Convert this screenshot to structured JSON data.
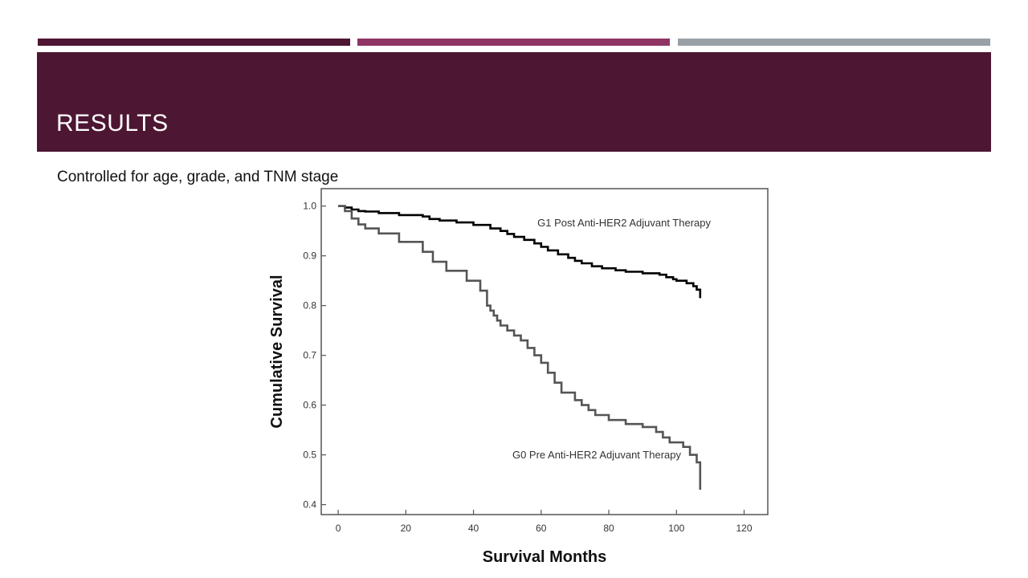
{
  "theme": {
    "stripe_colors": [
      "#4d1632",
      "#8f3564",
      "#9aa1a6"
    ],
    "band_color": "#4d1632"
  },
  "slide": {
    "title": "RESULTS",
    "subtitle": "Controlled for age, grade, and TNM stage"
  },
  "chart_data": {
    "type": "line",
    "title": "",
    "xlabel": "Survival Months",
    "ylabel": "Cumulative Survival",
    "xlim": [
      -5,
      127
    ],
    "ylim": [
      0.38,
      1.035
    ],
    "xticks": [
      0,
      20,
      40,
      60,
      80,
      100,
      120
    ],
    "yticks": [
      0.4,
      0.5,
      0.6,
      0.7,
      0.8,
      0.9,
      1.0
    ],
    "yticklabels": [
      "0.4",
      "0.5",
      "0.6",
      "0.7",
      "0.8",
      "0.9",
      "1.0"
    ],
    "grid": false,
    "step": true,
    "series": [
      {
        "name": "G1 Post Anti-HER2 Adjuvant Therapy",
        "color": "#000000",
        "x": [
          0,
          2,
          4,
          6,
          8,
          12,
          18,
          25,
          27,
          30,
          35,
          40,
          45,
          48,
          50,
          52,
          55,
          58,
          60,
          62,
          65,
          68,
          70,
          72,
          75,
          78,
          82,
          85,
          90,
          95,
          97,
          99,
          100,
          103,
          105,
          106,
          107
        ],
        "y": [
          1.0,
          0.997,
          0.993,
          0.99,
          0.989,
          0.986,
          0.982,
          0.979,
          0.974,
          0.971,
          0.967,
          0.962,
          0.955,
          0.95,
          0.944,
          0.938,
          0.932,
          0.925,
          0.918,
          0.911,
          0.903,
          0.896,
          0.89,
          0.885,
          0.879,
          0.875,
          0.871,
          0.868,
          0.865,
          0.862,
          0.857,
          0.853,
          0.85,
          0.845,
          0.839,
          0.832,
          0.815
        ]
      },
      {
        "name": "G0 Pre Anti-HER2 Adjuvant Therapy",
        "color": "#555555",
        "x": [
          0,
          2,
          4,
          6,
          8,
          12,
          18,
          25,
          28,
          32,
          38,
          42,
          44,
          45,
          46,
          47,
          48,
          50,
          52,
          54,
          56,
          58,
          60,
          62,
          64,
          66,
          70,
          72,
          74,
          76,
          80,
          85,
          90,
          94,
          96,
          98,
          102,
          104,
          106,
          107
        ],
        "y": [
          1.0,
          0.99,
          0.975,
          0.963,
          0.955,
          0.945,
          0.928,
          0.908,
          0.888,
          0.87,
          0.85,
          0.83,
          0.8,
          0.79,
          0.78,
          0.77,
          0.76,
          0.75,
          0.74,
          0.73,
          0.715,
          0.7,
          0.685,
          0.665,
          0.645,
          0.625,
          0.61,
          0.6,
          0.59,
          0.58,
          0.57,
          0.562,
          0.556,
          0.546,
          0.535,
          0.525,
          0.516,
          0.5,
          0.485,
          0.43
        ]
      }
    ]
  }
}
